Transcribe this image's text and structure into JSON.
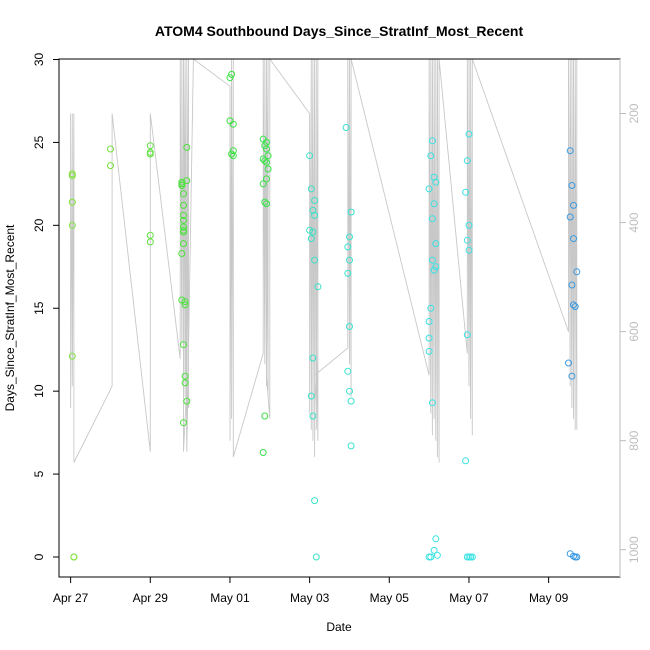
{
  "chart_data": {
    "type": "scatter",
    "title": "ATOM4 Southbound Days_Since_StratInf_Most_Recent",
    "xlabel": "Date",
    "ylabel": "Days_Since_StratInf_Most_Recent",
    "x_axis": {
      "type": "date",
      "range": [
        "2016-04-26T17:00",
        "2016-05-10T19:00"
      ],
      "ticks": [
        "2016-04-27",
        "2016-04-29",
        "2016-05-01",
        "2016-05-03",
        "2016-05-05",
        "2016-05-07",
        "2016-05-09"
      ],
      "tick_labels": [
        "Apr 27",
        "Apr 29",
        "May 01",
        "May 03",
        "May 05",
        "May 07",
        "May 09"
      ]
    },
    "y_axis": {
      "range": [
        0,
        30
      ],
      "ticks": [
        0,
        5,
        10,
        15,
        20,
        25,
        30
      ]
    },
    "y2_axis": {
      "range": [
        1050,
        100
      ],
      "inverted": true,
      "ticks": [
        200,
        400,
        600,
        800,
        1000
      ],
      "color": "#bdbdbd"
    },
    "grid": false,
    "legend": "none",
    "point_series": {
      "marker": "open-circle",
      "color_by_date": true,
      "points": [
        [
          "2016-04-27T01:00",
          23.1,
          "#7fe23a"
        ],
        [
          "2016-04-27T01:00",
          23.0,
          "#7fe23a"
        ],
        [
          "2016-04-27T01:00",
          21.4,
          "#7fe23a"
        ],
        [
          "2016-04-27T01:00",
          20.0,
          "#7fe23a"
        ],
        [
          "2016-04-27T01:00",
          12.1,
          "#7fe23a"
        ],
        [
          "2016-04-27T02:00",
          0.0,
          "#7fe23a"
        ],
        [
          "2016-04-27T02:00",
          0.0,
          "#7fe23a"
        ],
        [
          "2016-04-28T00:00",
          24.6,
          "#75e23a"
        ],
        [
          "2016-04-28T00:00",
          23.6,
          "#75e23a"
        ],
        [
          "2016-04-29T00:00",
          24.8,
          "#5ee23a"
        ],
        [
          "2016-04-29T00:00",
          24.4,
          "#5ee23a"
        ],
        [
          "2016-04-29T00:00",
          24.3,
          "#5ee23a"
        ],
        [
          "2016-04-29T00:00",
          19.4,
          "#5ee23a"
        ],
        [
          "2016-04-29T00:00",
          19.0,
          "#5ee23a"
        ],
        [
          "2016-04-29T19:00",
          22.6,
          "#4ae23a"
        ],
        [
          "2016-04-29T19:00",
          22.5,
          "#4ae23a"
        ],
        [
          "2016-04-29T19:00",
          22.4,
          "#4ae23a"
        ],
        [
          "2016-04-29T20:00",
          21.9,
          "#4ae23a"
        ],
        [
          "2016-04-29T20:00",
          21.2,
          "#4ae23a"
        ],
        [
          "2016-04-29T20:00",
          20.6,
          "#4ae23a"
        ],
        [
          "2016-04-29T20:00",
          20.3,
          "#4ae23a"
        ],
        [
          "2016-04-29T20:00",
          19.9,
          "#4ae23a"
        ],
        [
          "2016-04-29T20:00",
          19.6,
          "#4ae23a"
        ],
        [
          "2016-04-29T20:00",
          19.7,
          "#4ae23a"
        ],
        [
          "2016-04-29T19:00",
          18.3,
          "#4ae23a"
        ],
        [
          "2016-04-29T20:00",
          18.9,
          "#4ae23a"
        ],
        [
          "2016-04-29T19:00",
          15.5,
          "#4ae23a"
        ],
        [
          "2016-04-29T21:00",
          15.4,
          "#4ae23a"
        ],
        [
          "2016-04-29T21:00",
          15.2,
          "#4ae23a"
        ],
        [
          "2016-04-29T20:00",
          12.8,
          "#4ae23a"
        ],
        [
          "2016-04-29T21:00",
          10.9,
          "#4ae23a"
        ],
        [
          "2016-04-29T21:00",
          10.5,
          "#4ae23a"
        ],
        [
          "2016-04-29T22:00",
          9.4,
          "#4ae23a"
        ],
        [
          "2016-04-29T20:00",
          8.1,
          "#4ae23a"
        ],
        [
          "2016-04-29T22:00",
          22.7,
          "#4ae23a"
        ],
        [
          "2016-04-29T22:00",
          24.7,
          "#4ae23a"
        ],
        [
          "2016-05-01T01:00",
          29.1,
          "#3ae240"
        ],
        [
          "2016-05-01T00:00",
          28.9,
          "#3ae240"
        ],
        [
          "2016-05-01T00:00",
          26.3,
          "#3ae240"
        ],
        [
          "2016-05-01T02:00",
          26.1,
          "#3ae240"
        ],
        [
          "2016-05-01T02:00",
          24.5,
          "#3ae240"
        ],
        [
          "2016-05-01T01:00",
          24.3,
          "#3ae240"
        ],
        [
          "2016-05-01T02:00",
          24.2,
          "#3ae240"
        ],
        [
          "2016-05-01T20:00",
          25.2,
          "#3ae24a"
        ],
        [
          "2016-05-01T22:00",
          25.0,
          "#3ae24a"
        ],
        [
          "2016-05-01T21:00",
          24.8,
          "#3ae24a"
        ],
        [
          "2016-05-01T22:00",
          24.6,
          "#3ae24a"
        ],
        [
          "2016-05-01T23:00",
          24.2,
          "#3ae24a"
        ],
        [
          "2016-05-01T20:00",
          24.0,
          "#3ae24a"
        ],
        [
          "2016-05-01T21:00",
          23.9,
          "#3ae24a"
        ],
        [
          "2016-05-01T22:00",
          23.8,
          "#3ae24a"
        ],
        [
          "2016-05-01T23:00",
          23.4,
          "#3ae24a"
        ],
        [
          "2016-05-01T22:00",
          22.8,
          "#3ae24a"
        ],
        [
          "2016-05-01T20:00",
          22.5,
          "#3ae24a"
        ],
        [
          "2016-05-01T21:00",
          21.4,
          "#3ae24a"
        ],
        [
          "2016-05-01T22:00",
          21.3,
          "#3ae24a"
        ],
        [
          "2016-05-01T21:00",
          8.5,
          "#3ae24a"
        ],
        [
          "2016-05-01T20:00",
          6.3,
          "#3ae24a"
        ],
        [
          "2016-05-03T00:00",
          24.2,
          "#3ae2c8"
        ],
        [
          "2016-05-03T01:00",
          22.2,
          "#3ae2c8"
        ],
        [
          "2016-05-03T03:00",
          21.5,
          "#3ae2c8"
        ],
        [
          "2016-05-03T02:00",
          20.9,
          "#3ae2c8"
        ],
        [
          "2016-05-03T03:00",
          20.6,
          "#3ae2c8"
        ],
        [
          "2016-05-03T00:00",
          19.7,
          "#3ae2c8"
        ],
        [
          "2016-05-03T02:00",
          19.6,
          "#3ae2c8"
        ],
        [
          "2016-05-03T01:00",
          19.2,
          "#3ae2c8"
        ],
        [
          "2016-05-03T03:00",
          17.9,
          "#3ae2c8"
        ],
        [
          "2016-05-03T05:00",
          16.3,
          "#3ae2c8"
        ],
        [
          "2016-05-03T02:00",
          12.0,
          "#3ae2c8"
        ],
        [
          "2016-05-03T01:00",
          9.7,
          "#3ae2c8"
        ],
        [
          "2016-05-03T02:00",
          8.5,
          "#3ae2c8"
        ],
        [
          "2016-05-03T03:00",
          3.4,
          "#3ae2c8"
        ],
        [
          "2016-05-03T04:00",
          0.0,
          "#3ae2c8"
        ],
        [
          "2016-05-03T22:00",
          25.9,
          "#3ae2d0"
        ],
        [
          "2016-05-04T01:00",
          20.8,
          "#3ae2d0"
        ],
        [
          "2016-05-04T00:00",
          19.3,
          "#3ae2d0"
        ],
        [
          "2016-05-03T23:00",
          18.7,
          "#3ae2d0"
        ],
        [
          "2016-05-04T00:00",
          17.9,
          "#3ae2d0"
        ],
        [
          "2016-05-03T23:00",
          17.1,
          "#3ae2d0"
        ],
        [
          "2016-05-04T00:00",
          13.9,
          "#3ae2d0"
        ],
        [
          "2016-05-03T23:00",
          11.2,
          "#3ae2d0"
        ],
        [
          "2016-05-04T00:00",
          10.0,
          "#3ae2d0"
        ],
        [
          "2016-05-04T01:00",
          9.4,
          "#3ae2d0"
        ],
        [
          "2016-05-04T01:00",
          6.7,
          "#3ae2d0"
        ],
        [
          "2016-05-06T02:00",
          25.1,
          "#3ae2e2"
        ],
        [
          "2016-05-06T01:00",
          24.2,
          "#3ae2e2"
        ],
        [
          "2016-05-06T03:00",
          22.9,
          "#3ae2e2"
        ],
        [
          "2016-05-06T04:00",
          22.6,
          "#3ae2e2"
        ],
        [
          "2016-05-06T00:00",
          22.2,
          "#3ae2e2"
        ],
        [
          "2016-05-06T03:00",
          21.3,
          "#3ae2e2"
        ],
        [
          "2016-05-06T02:00",
          20.4,
          "#3ae2e2"
        ],
        [
          "2016-05-06T04:00",
          18.9,
          "#3ae2e2"
        ],
        [
          "2016-05-06T02:00",
          17.9,
          "#3ae2e2"
        ],
        [
          "2016-05-06T04:00",
          17.5,
          "#3ae2e2"
        ],
        [
          "2016-05-06T03:00",
          17.3,
          "#3ae2e2"
        ],
        [
          "2016-05-06T01:00",
          15.0,
          "#3ae2e2"
        ],
        [
          "2016-05-06T00:00",
          14.2,
          "#3ae2e2"
        ],
        [
          "2016-05-06T00:00",
          13.2,
          "#3ae2e2"
        ],
        [
          "2016-05-06T00:00",
          12.4,
          "#3ae2e2"
        ],
        [
          "2016-05-06T02:00",
          9.3,
          "#3ae2e2"
        ],
        [
          "2016-05-06T04:00",
          1.1,
          "#3ae2e2"
        ],
        [
          "2016-05-06T03:00",
          0.4,
          "#3ae2e2"
        ],
        [
          "2016-05-06T05:00",
          0.1,
          "#3ae2e2"
        ],
        [
          "2016-05-06T00:00",
          0.0,
          "#3ae2e2"
        ],
        [
          "2016-05-06T01:00",
          0.0,
          "#3ae2e2"
        ],
        [
          "2016-05-07T00:00",
          25.5,
          "#3ae2e2"
        ],
        [
          "2016-05-06T23:00",
          23.9,
          "#3ae2e2"
        ],
        [
          "2016-05-06T22:00",
          22.0,
          "#3ae2e2"
        ],
        [
          "2016-05-07T00:00",
          20.0,
          "#3ae2e2"
        ],
        [
          "2016-05-06T23:00",
          19.1,
          "#3ae2e2"
        ],
        [
          "2016-05-07T00:00",
          18.5,
          "#3ae2e2"
        ],
        [
          "2016-05-06T23:00",
          13.4,
          "#3ae2e2"
        ],
        [
          "2016-05-06T22:00",
          5.8,
          "#3ae2e2"
        ],
        [
          "2016-05-06T23:00",
          0.0,
          "#3ae2e2"
        ],
        [
          "2016-05-07T00:00",
          0.0,
          "#3ae2e2"
        ],
        [
          "2016-05-07T01:00",
          0.0,
          "#3ae2e2"
        ],
        [
          "2016-05-07T02:00",
          0.0,
          "#3ae2e2"
        ],
        [
          "2016-05-09T13:00",
          24.5,
          "#3a9ae2"
        ],
        [
          "2016-05-09T14:00",
          22.4,
          "#3a9ae2"
        ],
        [
          "2016-05-09T15:00",
          21.2,
          "#3a9ae2"
        ],
        [
          "2016-05-09T13:00",
          20.5,
          "#3a9ae2"
        ],
        [
          "2016-05-09T15:00",
          19.2,
          "#3a9ae2"
        ],
        [
          "2016-05-09T17:00",
          17.2,
          "#3a9ae2"
        ],
        [
          "2016-05-09T14:00",
          16.4,
          "#3a9ae2"
        ],
        [
          "2016-05-09T15:00",
          15.2,
          "#3a9ae2"
        ],
        [
          "2016-05-09T16:00",
          15.1,
          "#3a9ae2"
        ],
        [
          "2016-05-09T12:00",
          11.7,
          "#3a9ae2"
        ],
        [
          "2016-05-09T14:00",
          10.9,
          "#3a9ae2"
        ],
        [
          "2016-05-09T13:00",
          0.2,
          "#3a9ae2"
        ],
        [
          "2016-05-09T15:00",
          0.05,
          "#3a9ae2"
        ],
        [
          "2016-05-09T16:00",
          0.0,
          "#3a9ae2"
        ],
        [
          "2016-05-09T17:00",
          0.0,
          "#3a9ae2"
        ]
      ]
    },
    "line_series": {
      "axis": "y2",
      "color": "#c8c8c8",
      "vertices": [
        [
          "2016-04-27T00:00",
          200
        ],
        [
          "2016-04-27T00:00",
          740
        ],
        [
          "2016-04-27T01:00",
          200
        ],
        [
          "2016-04-27T01:00",
          700
        ],
        [
          "2016-04-27T02:00",
          200
        ],
        [
          "2016-04-27T02:00",
          840
        ],
        [
          "2016-04-28T01:00",
          700
        ],
        [
          "2016-04-28T01:00",
          200
        ],
        [
          "2016-04-29T00:00",
          820
        ],
        [
          "2016-04-29T00:00",
          200
        ],
        [
          "2016-04-29T18:00",
          650
        ],
        [
          "2016-04-29T18:00",
          100
        ],
        [
          "2016-04-29T19:00",
          620
        ],
        [
          "2016-04-29T19:00",
          100
        ],
        [
          "2016-04-29T20:00",
          680
        ],
        [
          "2016-04-29T20:00",
          100
        ],
        [
          "2016-04-29T21:00",
          720
        ],
        [
          "2016-04-29T21:00",
          100
        ],
        [
          "2016-04-29T22:00",
          750
        ],
        [
          "2016-04-29T22:00",
          100
        ],
        [
          "2016-04-29T23:00",
          740
        ],
        [
          "2016-04-29T23:00",
          100
        ],
        [
          "2016-04-29T22:00",
          700
        ],
        [
          "2016-04-29T20:00",
          820
        ],
        [
          "2016-04-29T20:00",
          100
        ],
        [
          "2016-04-29T22:00",
          820
        ],
        [
          "2016-04-30T02:00",
          100
        ],
        [
          "2016-05-01T00:00",
          150
        ],
        [
          "2016-05-01T00:00",
          800
        ],
        [
          "2016-05-01T01:00",
          100
        ],
        [
          "2016-05-01T01:00",
          760
        ],
        [
          "2016-05-01T02:00",
          100
        ],
        [
          "2016-05-01T02:00",
          830
        ],
        [
          "2016-05-01T20:00",
          640
        ],
        [
          "2016-05-01T20:00",
          100
        ],
        [
          "2016-05-01T21:00",
          660
        ],
        [
          "2016-05-01T21:00",
          100
        ],
        [
          "2016-05-01T22:00",
          700
        ],
        [
          "2016-05-01T22:00",
          100
        ],
        [
          "2016-05-01T23:00",
          720
        ],
        [
          "2016-05-01T23:00",
          100
        ],
        [
          "2016-05-01T22:00",
          680
        ],
        [
          "2016-05-02T00:00",
          760
        ],
        [
          "2016-05-02T00:00",
          100
        ],
        [
          "2016-05-03T00:00",
          200
        ],
        [
          "2016-05-03T00:00",
          750
        ],
        [
          "2016-05-03T01:00",
          100
        ],
        [
          "2016-05-03T01:00",
          780
        ],
        [
          "2016-05-03T02:00",
          100
        ],
        [
          "2016-05-03T02:00",
          800
        ],
        [
          "2016-05-03T03:00",
          100
        ],
        [
          "2016-05-03T03:00",
          830
        ],
        [
          "2016-05-03T04:00",
          100
        ],
        [
          "2016-05-03T04:00",
          780
        ],
        [
          "2016-05-03T05:00",
          100
        ],
        [
          "2016-05-03T05:00",
          800
        ],
        [
          "2016-05-03T04:00",
          580
        ],
        [
          "2016-05-03T04:00",
          730
        ],
        [
          "2016-05-03T03:00",
          680
        ],
        [
          "2016-05-03T23:00",
          630
        ],
        [
          "2016-05-03T23:00",
          100
        ],
        [
          "2016-05-04T00:00",
          660
        ],
        [
          "2016-05-04T00:00",
          100
        ],
        [
          "2016-05-04T01:00",
          720
        ],
        [
          "2016-05-04T01:00",
          100
        ],
        [
          "2016-05-06T00:00",
          680
        ],
        [
          "2016-05-06T00:00",
          100
        ],
        [
          "2016-05-06T01:00",
          750
        ],
        [
          "2016-05-06T01:00",
          100
        ],
        [
          "2016-05-06T02:00",
          790
        ],
        [
          "2016-05-06T02:00",
          100
        ],
        [
          "2016-05-06T03:00",
          760
        ],
        [
          "2016-05-06T03:00",
          100
        ],
        [
          "2016-05-06T04:00",
          800
        ],
        [
          "2016-05-06T04:00",
          100
        ],
        [
          "2016-05-06T05:00",
          830
        ],
        [
          "2016-05-06T05:00",
          100
        ],
        [
          "2016-05-06T06:00",
          840
        ],
        [
          "2016-05-06T06:00",
          100
        ],
        [
          "2016-05-06T23:00",
          640
        ],
        [
          "2016-05-06T23:00",
          100
        ],
        [
          "2016-05-07T00:00",
          700
        ],
        [
          "2016-05-07T00:00",
          100
        ],
        [
          "2016-05-07T01:00",
          760
        ],
        [
          "2016-05-07T01:00",
          100
        ],
        [
          "2016-05-07T02:00",
          790
        ],
        [
          "2016-05-07T02:00",
          100
        ],
        [
          "2016-05-09T12:00",
          600
        ],
        [
          "2016-05-09T12:00",
          100
        ],
        [
          "2016-05-09T13:00",
          700
        ],
        [
          "2016-05-09T13:00",
          100
        ],
        [
          "2016-05-09T14:00",
          740
        ],
        [
          "2016-05-09T14:00",
          100
        ],
        [
          "2016-05-09T15:00",
          760
        ],
        [
          "2016-05-09T15:00",
          100
        ],
        [
          "2016-05-09T16:00",
          780
        ],
        [
          "2016-05-09T16:00",
          100
        ],
        [
          "2016-05-09T17:00",
          780
        ],
        [
          "2016-05-09T17:00",
          100
        ]
      ]
    }
  }
}
